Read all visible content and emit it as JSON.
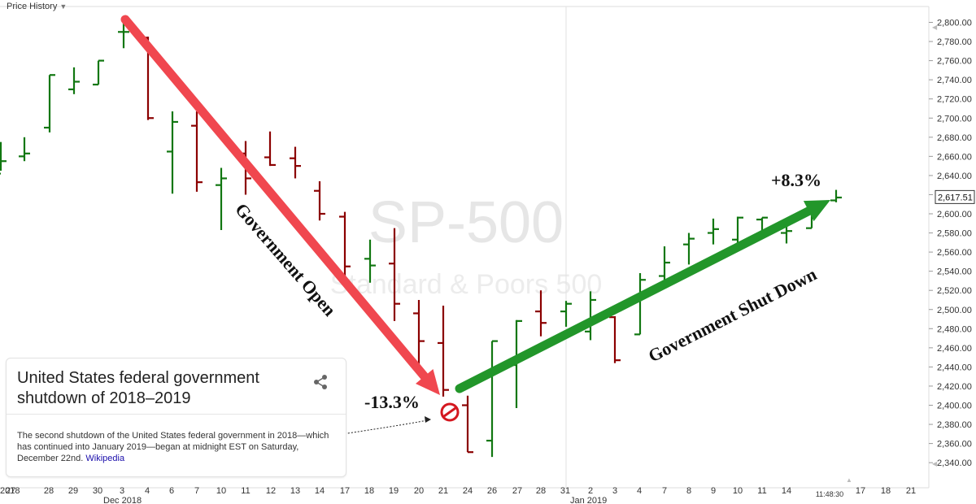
{
  "header": {
    "label": "Price History"
  },
  "card": {
    "title": "United States federal government shutdown of 2018–2019",
    "description": "The second shutdown of the United States federal government in 2018—which has continued into January 2019—began at midnight EST on Saturday, December 22nd.",
    "source_link": "Wikipedia"
  },
  "colors": {
    "up": "#117711",
    "down": "#8b0000",
    "arrow_down": "#f0474f",
    "arrow_up": "#22962a"
  },
  "chart_data": {
    "type": "ohlc",
    "watermark": {
      "title": "SP-500",
      "subtitle": "Standard & Poors 500"
    },
    "y_ticks": [
      "2,340.00",
      "2,360.00",
      "2,380.00",
      "2,400.00",
      "2,420.00",
      "2,440.00",
      "2,460.00",
      "2,480.00",
      "2,500.00",
      "2,520.00",
      "2,540.00",
      "2,560.00",
      "2,580.00",
      "2,600.00",
      "2,620.00",
      "2,640.00",
      "2,660.00",
      "2,680.00",
      "2,700.00",
      "2,720.00",
      "2,740.00",
      "2,760.00",
      "2,780.00",
      "2,800.00"
    ],
    "ylim": [
      2333,
      2815
    ],
    "x_tick_labels": [
      "2018",
      "27",
      "28",
      "29",
      "30",
      "3",
      "4",
      "6",
      "7",
      "10",
      "11",
      "12",
      "13",
      "14",
      "17",
      "18",
      "19",
      "20",
      "21",
      "24",
      "26",
      "27",
      "28",
      "31",
      "2",
      "3",
      "4",
      "7",
      "8",
      "9",
      "10",
      "11",
      "14",
      "11:48:30",
      "17",
      "18",
      "21"
    ],
    "x_period_labels": [
      "Dec 2018",
      "Jan 2019"
    ],
    "last_price": "2,617.51",
    "bars": [
      {
        "date": "Nov 21",
        "o": 2642,
        "h": 2675,
        "l": 2645,
        "c": 2655,
        "dir": "up"
      },
      {
        "date": "Nov 23",
        "o": 2660,
        "h": 2680,
        "l": 2655,
        "c": 2663,
        "dir": "up"
      },
      {
        "date": "Nov 26",
        "o": 2690,
        "h": 2745,
        "l": 2685,
        "c": 2745,
        "dir": "up"
      },
      {
        "date": "Nov 27",
        "o": 2730,
        "h": 2753,
        "l": 2725,
        "c": 2738,
        "dir": "up"
      },
      {
        "date": "Nov 28",
        "o": 2735,
        "h": 2760,
        "l": 2735,
        "c": 2760,
        "dir": "up"
      },
      {
        "date": "Dec 3",
        "o": 2790,
        "h": 2800,
        "l": 2773,
        "c": 2790,
        "dir": "up"
      },
      {
        "date": "Dec 4",
        "o": 2784,
        "h": 2785,
        "l": 2698,
        "c": 2700,
        "dir": "down"
      },
      {
        "date": "Dec 6",
        "o": 2665,
        "h": 2707,
        "l": 2621,
        "c": 2696,
        "dir": "up"
      },
      {
        "date": "Dec 7",
        "o": 2692,
        "h": 2707,
        "l": 2623,
        "c": 2633,
        "dir": "down"
      },
      {
        "date": "Dec 10",
        "o": 2630,
        "h": 2648,
        "l": 2583,
        "c": 2637,
        "dir": "up"
      },
      {
        "date": "Dec 11",
        "o": 2663,
        "h": 2676,
        "l": 2620,
        "c": 2637,
        "dir": "down"
      },
      {
        "date": "Dec 12",
        "o": 2659,
        "h": 2686,
        "l": 2650,
        "c": 2651,
        "dir": "down"
      },
      {
        "date": "Dec 13",
        "o": 2658,
        "h": 2670,
        "l": 2637,
        "c": 2650,
        "dir": "down"
      },
      {
        "date": "Dec 14",
        "o": 2624,
        "h": 2634,
        "l": 2593,
        "c": 2600,
        "dir": "down"
      },
      {
        "date": "Dec 17",
        "o": 2597,
        "h": 2602,
        "l": 2530,
        "c": 2545,
        "dir": "down"
      },
      {
        "date": "Dec 18",
        "o": 2553,
        "h": 2573,
        "l": 2528,
        "c": 2546,
        "dir": "up"
      },
      {
        "date": "Dec 19",
        "o": 2548,
        "h": 2585,
        "l": 2488,
        "c": 2506,
        "dir": "down"
      },
      {
        "date": "Dec 20",
        "o": 2496,
        "h": 2510,
        "l": 2441,
        "c": 2467,
        "dir": "down"
      },
      {
        "date": "Dec 21",
        "o": 2465,
        "h": 2504,
        "l": 2409,
        "c": 2416,
        "dir": "down"
      },
      {
        "date": "Dec 24",
        "o": 2400,
        "h": 2410,
        "l": 2351,
        "c": 2351,
        "dir": "down"
      },
      {
        "date": "Dec 26",
        "o": 2363,
        "h": 2467,
        "l": 2346,
        "c": 2467,
        "dir": "up"
      },
      {
        "date": "Dec 27",
        "o": 2442,
        "h": 2489,
        "l": 2397,
        "c": 2488,
        "dir": "up"
      },
      {
        "date": "Dec 28",
        "o": 2498,
        "h": 2520,
        "l": 2472,
        "c": 2486,
        "dir": "down"
      },
      {
        "date": "Dec 31",
        "o": 2498,
        "h": 2509,
        "l": 2482,
        "c": 2506,
        "dir": "up"
      },
      {
        "date": "Jan 2",
        "o": 2477,
        "h": 2519,
        "l": 2468,
        "c": 2510,
        "dir": "up"
      },
      {
        "date": "Jan 3",
        "o": 2492,
        "h": 2493,
        "l": 2444,
        "c": 2447,
        "dir": "down"
      },
      {
        "date": "Jan 4",
        "o": 2474,
        "h": 2538,
        "l": 2474,
        "c": 2531,
        "dir": "up"
      },
      {
        "date": "Jan 7",
        "o": 2535,
        "h": 2566,
        "l": 2524,
        "c": 2549,
        "dir": "up"
      },
      {
        "date": "Jan 8",
        "o": 2568,
        "h": 2580,
        "l": 2547,
        "c": 2574,
        "dir": "up"
      },
      {
        "date": "Jan 9",
        "o": 2580,
        "h": 2595,
        "l": 2568,
        "c": 2584,
        "dir": "up"
      },
      {
        "date": "Jan 10",
        "o": 2573,
        "h": 2597,
        "l": 2562,
        "c": 2596,
        "dir": "up"
      },
      {
        "date": "Jan 11",
        "o": 2594,
        "h": 2596,
        "l": 2577,
        "c": 2596,
        "dir": "up"
      },
      {
        "date": "Jan 14",
        "o": 2580,
        "h": 2589,
        "l": 2569,
        "c": 2582,
        "dir": "up"
      },
      {
        "date": "Jan 15",
        "o": 2585,
        "h": 2613,
        "l": 2585,
        "c": 2610,
        "dir": "up"
      },
      {
        "date": "Jan 16",
        "o": 2614,
        "h": 2625,
        "l": 2612,
        "c": 2617,
        "dir": "up"
      }
    ],
    "annotations": [
      {
        "text": "Government Open",
        "role": "down-arrow-label"
      },
      {
        "text": "Government Shut Down",
        "role": "up-arrow-label"
      },
      {
        "text": "-13.3%",
        "role": "decline"
      },
      {
        "text": "+8.3%",
        "role": "gain"
      }
    ]
  }
}
